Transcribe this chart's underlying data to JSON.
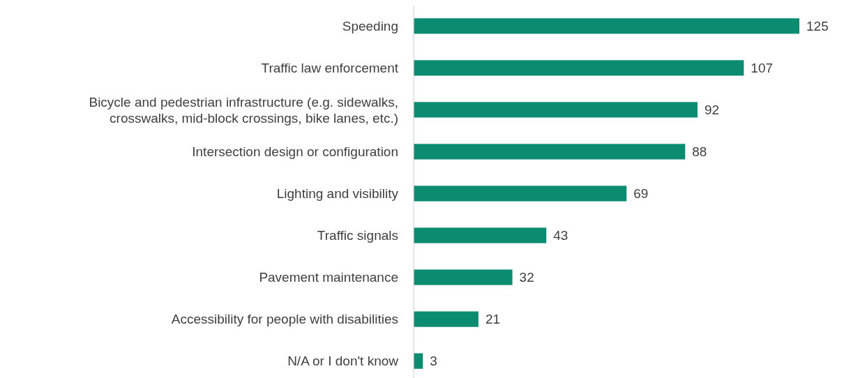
{
  "chart_data": {
    "type": "bar",
    "orientation": "horizontal",
    "data_labels": true,
    "categories": [
      "Speeding",
      "Traffic law enforcement",
      "Bicycle and pedestrian infrastructure (e.g. sidewalks,\ncrosswalks, mid-block crossings, bike lanes, etc.)",
      "Intersection design or configuration",
      "Lighting and visibility",
      "Traffic signals",
      "Pavement maintenance",
      "Accessibility for people with disabilities",
      "N/A or I don't know"
    ],
    "values": [
      125,
      107,
      92,
      88,
      69,
      43,
      32,
      21,
      3
    ],
    "color": "#0b8c70"
  }
}
